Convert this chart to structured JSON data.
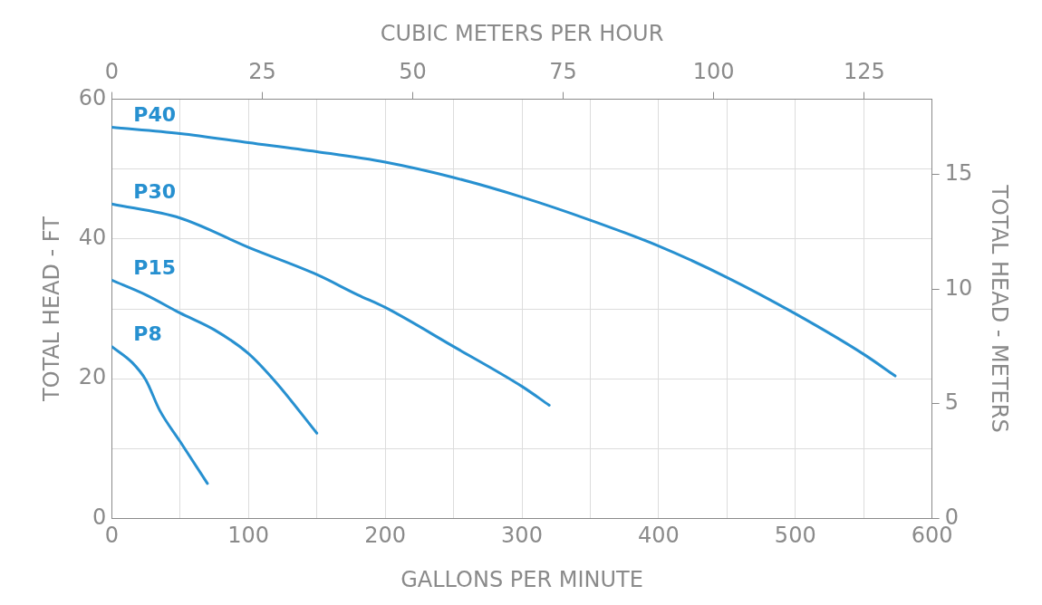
{
  "chart_data": {
    "type": "line",
    "xlabel": "GALLONS PER MINUTE",
    "ylabel": "TOTAL HEAD - FT",
    "y2label": "TOTAL HEAD - METERS",
    "x2label": "CUBIC METERS PER HOUR",
    "xlim": [
      0,
      600
    ],
    "xticks": [
      0,
      {
        "value": 50,
        "label": null
      },
      100,
      {
        "value": 150,
        "label": null
      },
      200,
      {
        "value": 250,
        "label": null
      },
      300,
      {
        "value": 350,
        "label": null
      },
      400,
      {
        "value": 450,
        "label": null
      },
      500,
      {
        "value": 550,
        "label": null
      },
      600
    ],
    "ylim": [
      0,
      60
    ],
    "yticks": [
      0,
      {
        "value": 10,
        "label": null
      },
      20,
      {
        "value": 30,
        "label": null
      },
      40,
      {
        "value": 50,
        "label": null
      },
      60
    ],
    "x2lim": [
      0,
      136.27
    ],
    "x2ticks": [
      0,
      25,
      50,
      75,
      100,
      125
    ],
    "y2lim": [
      0,
      18.29
    ],
    "y2ticks": [
      0,
      5,
      10,
      15
    ],
    "grid": true,
    "legend": false,
    "marker": "none",
    "line_style": "solid",
    "series": [
      {
        "name": "P40",
        "color": "#2790d0",
        "x": [
          0,
          50,
          100,
          150,
          200,
          250,
          300,
          350,
          400,
          450,
          500,
          550,
          573
        ],
        "values": [
          56,
          55.1,
          53.8,
          52.5,
          51,
          48.8,
          46,
          42.7,
          39,
          34.5,
          29.3,
          23.5,
          20.4
        ]
      },
      {
        "name": "P30",
        "color": "#2790d0",
        "x": [
          0,
          50,
          100,
          150,
          180,
          200,
          250,
          300,
          320
        ],
        "values": [
          45,
          43,
          38.8,
          34.9,
          32,
          30.2,
          24.6,
          18.9,
          16.2
        ]
      },
      {
        "name": "P15",
        "color": "#2790d0",
        "x": [
          0,
          25,
          50,
          75,
          100,
          120,
          150
        ],
        "values": [
          34.1,
          32,
          29.4,
          27,
          23.6,
          19.5,
          12.2
        ]
      },
      {
        "name": "P8",
        "color": "#2790d0",
        "x": [
          0,
          15,
          25,
          35,
          50,
          70
        ],
        "values": [
          24.6,
          22.3,
          19.8,
          15.5,
          11,
          5
        ]
      }
    ]
  }
}
